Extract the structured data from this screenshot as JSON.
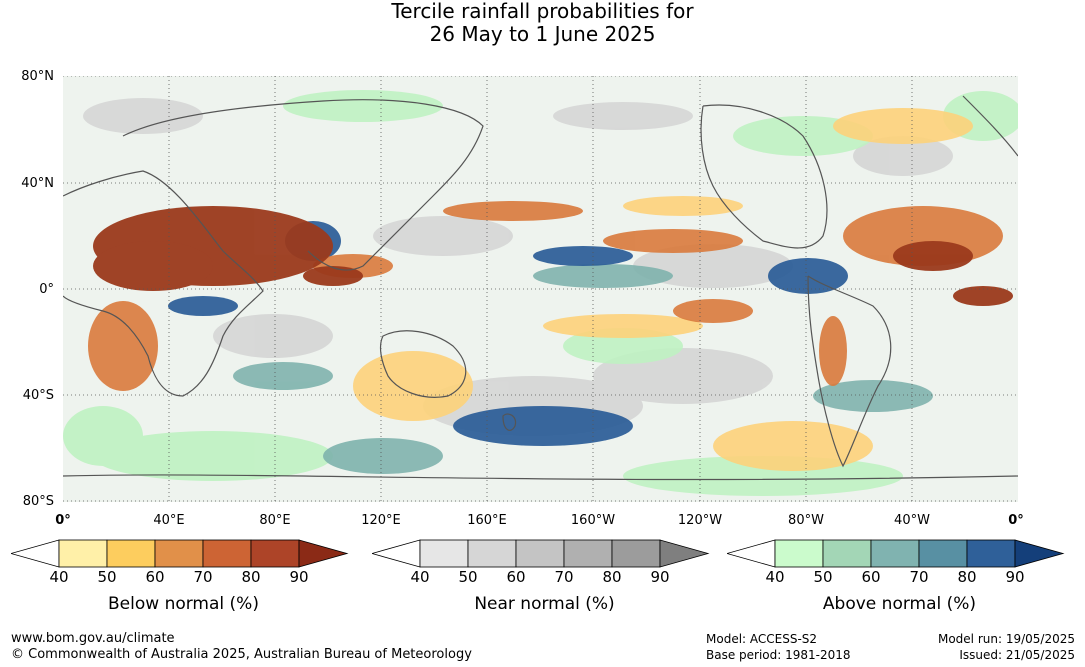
{
  "title_line1": "Tercile rainfall probabilities for",
  "title_line2": "26 May to 1 June 2025",
  "lat_labels": [
    "80°N",
    "40°N",
    "0°",
    "40°S",
    "80°S"
  ],
  "lon_labels": [
    "0°",
    "40°E",
    "80°E",
    "120°E",
    "160°E",
    "160°W",
    "120°W",
    "80°W",
    "40°W",
    "0°"
  ],
  "legends": [
    {
      "label": "Below normal (%)",
      "ticks": [
        "40",
        "50",
        "60",
        "70",
        "80",
        "90"
      ],
      "colors": [
        "#fff0a8",
        "#fdcd5e",
        "#e19049",
        "#cd6434",
        "#ad4428",
        "#8b2a16"
      ]
    },
    {
      "label": "Near normal (%)",
      "ticks": [
        "40",
        "50",
        "60",
        "70",
        "80",
        "90"
      ],
      "colors": [
        "#e6e6e6",
        "#d6d6d6",
        "#c4c4c4",
        "#b0b0b0",
        "#9c9c9c",
        "#7f7f7f"
      ]
    },
    {
      "label": "Above normal (%)",
      "ticks": [
        "40",
        "50",
        "60",
        "70",
        "80",
        "90"
      ],
      "colors": [
        "#cbfbcc",
        "#a3d6b6",
        "#80b3b0",
        "#5890a3",
        "#2f6099",
        "#143f7a"
      ]
    }
  ],
  "footer": {
    "website": "www.bom.gov.au/climate",
    "copyright": "© Commonwealth of Australia 2025, Australian Bureau of Meteorology",
    "model": "Model: ACCESS-S2",
    "base_period": "Base period: 1981-2018",
    "model_run": "Model run: 19/05/2025",
    "issued": "Issued: 21/05/2025"
  }
}
